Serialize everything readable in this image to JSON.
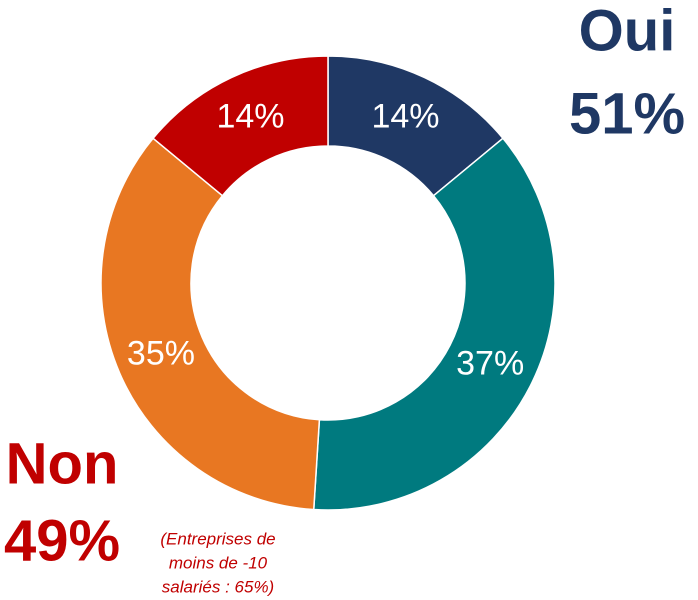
{
  "chart_data": {
    "type": "donut",
    "values": [
      14,
      37,
      35,
      14
    ],
    "value_labels": [
      "14%",
      "37%",
      "35%",
      "14%"
    ],
    "colors": [
      "#1f3864",
      "#007a7f",
      "#e87722",
      "#c00000"
    ],
    "annotations": {
      "oui": "Oui",
      "oui_value": "51%",
      "non": "Non",
      "non_value": "49%",
      "note": [
        "(Entreprises de",
        "moins de -10",
        "salariés : 65%)"
      ]
    }
  }
}
